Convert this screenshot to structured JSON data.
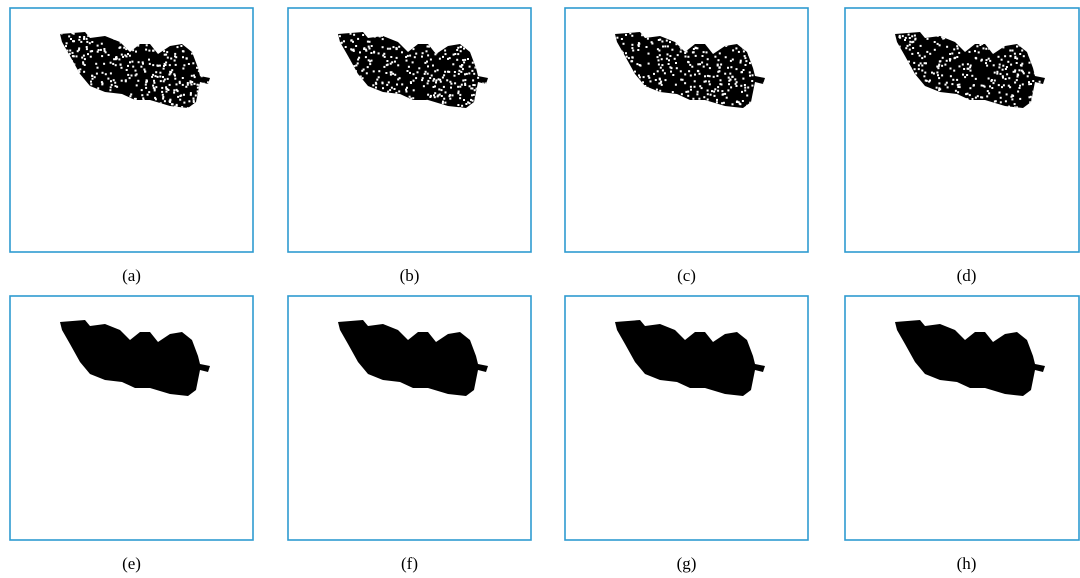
{
  "panels": [
    {
      "label": "(a)",
      "noisy": true
    },
    {
      "label": "(b)",
      "noisy": true
    },
    {
      "label": "(c)",
      "noisy": true
    },
    {
      "label": "(d)",
      "noisy": true
    },
    {
      "label": "(e)",
      "noisy": false
    },
    {
      "label": "(f)",
      "noisy": false
    },
    {
      "label": "(g)",
      "noisy": false
    },
    {
      "label": "(h)",
      "noisy": false
    }
  ]
}
